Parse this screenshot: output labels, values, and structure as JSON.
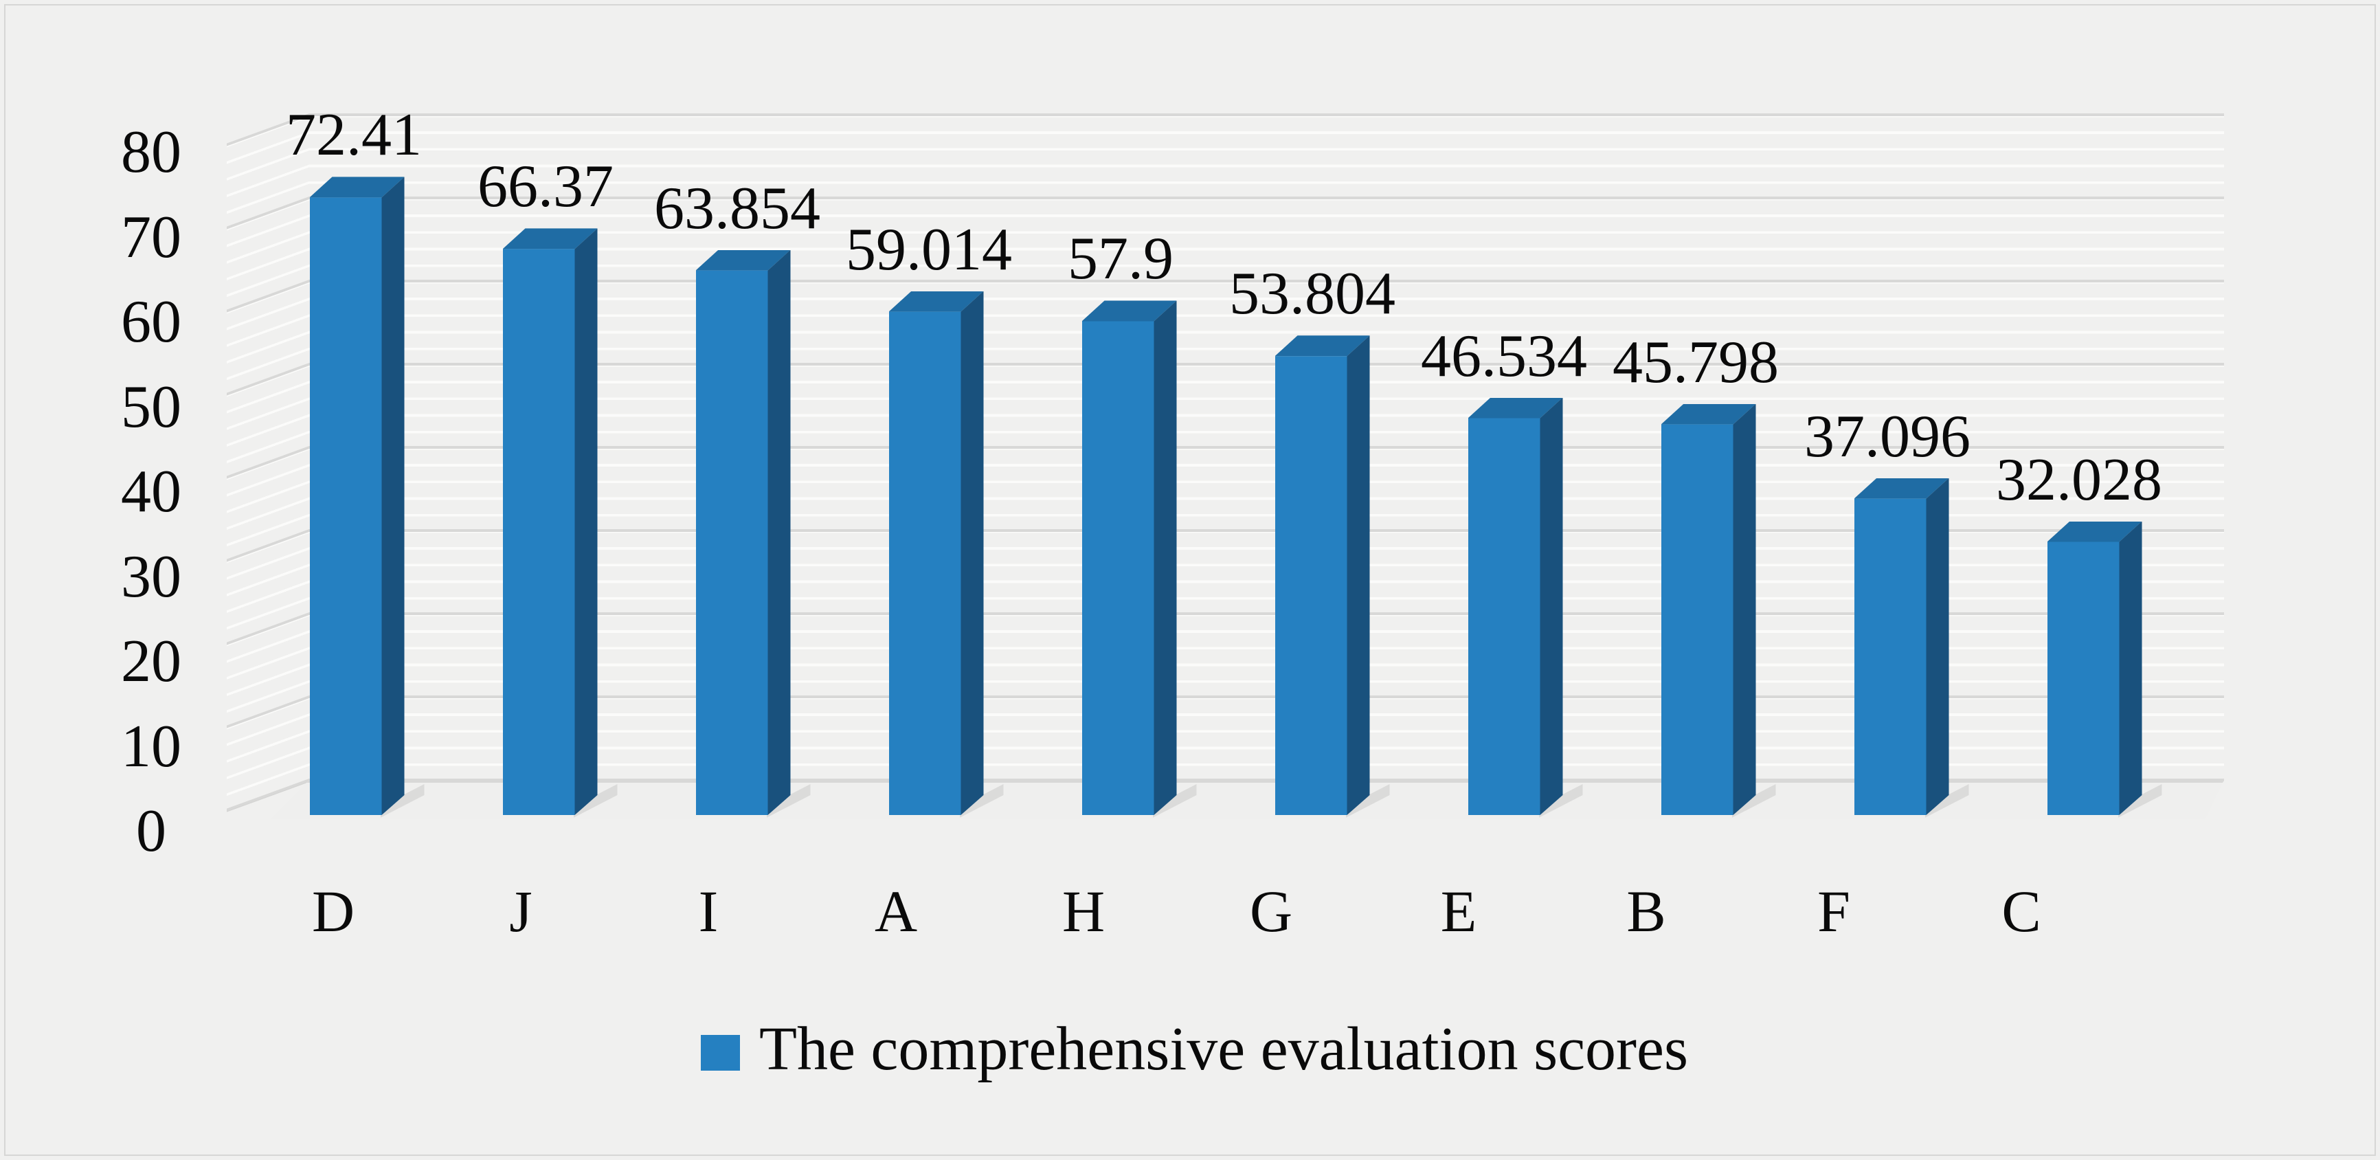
{
  "figure": {
    "background_color": "#F0F0EF",
    "border_color": "#D6D6D5",
    "minor_gridline_color": "#FBFBFA",
    "major_gridline_color": "#D8D8D7",
    "text_color": "#0A0A0A"
  },
  "chart_data": {
    "type": "bar",
    "style": "3d-column",
    "title": "",
    "xlabel": "",
    "ylabel": "",
    "categories": [
      "D",
      "J",
      "I",
      "A",
      "H",
      "G",
      "E",
      "B",
      "F",
      "C"
    ],
    "values": [
      72.41,
      66.37,
      63.854,
      59.014,
      57.9,
      53.804,
      46.534,
      45.798,
      37.096,
      32.028
    ],
    "data_labels": [
      "72.41",
      "66.37",
      "63.854",
      "59.014",
      "57.9",
      "53.804",
      "46.534",
      "45.798",
      "37.096",
      "32.028"
    ],
    "ylim": [
      0,
      80
    ],
    "yticks": [
      "80",
      "70",
      "60",
      "50",
      "40",
      "30",
      "20",
      "10",
      "0"
    ],
    "ytick_values": [
      80,
      70,
      60,
      50,
      40,
      30,
      20,
      10,
      0
    ],
    "grid": "horizontal major every 10, minor every 2",
    "legend": {
      "label": "The comprehensive evaluation scores",
      "position": "bottom",
      "marker_color": "#2580C1"
    },
    "bar_colors": {
      "front": "#2580C1",
      "top": "#1F6CA4",
      "side": "#19517D"
    }
  }
}
